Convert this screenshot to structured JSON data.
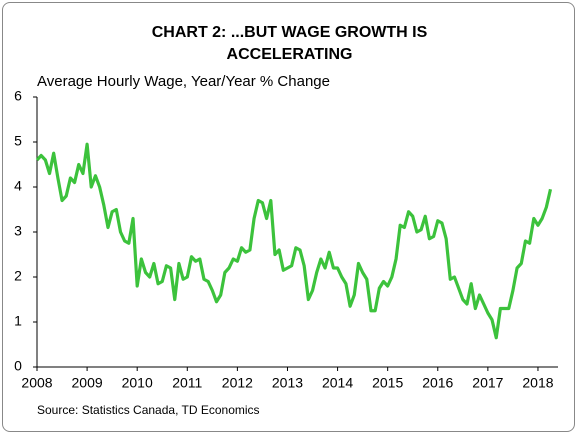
{
  "chart_data": {
    "type": "line",
    "title": "CHART 2: ...BUT WAGE GROWTH IS ACCELERATING",
    "subtitle": "Average Hourly Wage, Year/Year % Change",
    "source": "Source: Statistics Canada, TD Economics",
    "x": [
      2008,
      2008.083,
      2008.167,
      2008.25,
      2008.333,
      2008.417,
      2008.5,
      2008.583,
      2008.667,
      2008.75,
      2008.833,
      2008.917,
      2009,
      2009.083,
      2009.167,
      2009.25,
      2009.333,
      2009.417,
      2009.5,
      2009.583,
      2009.667,
      2009.75,
      2009.833,
      2009.917,
      2010,
      2010.083,
      2010.167,
      2010.25,
      2010.333,
      2010.417,
      2010.5,
      2010.583,
      2010.667,
      2010.75,
      2010.833,
      2010.917,
      2011,
      2011.083,
      2011.167,
      2011.25,
      2011.333,
      2011.417,
      2011.5,
      2011.583,
      2011.667,
      2011.75,
      2011.833,
      2011.917,
      2012,
      2012.083,
      2012.167,
      2012.25,
      2012.333,
      2012.417,
      2012.5,
      2012.583,
      2012.667,
      2012.75,
      2012.833,
      2012.917,
      2013,
      2013.083,
      2013.167,
      2013.25,
      2013.333,
      2013.417,
      2013.5,
      2013.583,
      2013.667,
      2013.75,
      2013.833,
      2013.917,
      2014,
      2014.083,
      2014.167,
      2014.25,
      2014.333,
      2014.417,
      2014.5,
      2014.583,
      2014.667,
      2014.75,
      2014.833,
      2014.917,
      2015,
      2015.083,
      2015.167,
      2015.25,
      2015.333,
      2015.417,
      2015.5,
      2015.583,
      2015.667,
      2015.75,
      2015.833,
      2015.917,
      2016,
      2016.083,
      2016.167,
      2016.25,
      2016.333,
      2016.417,
      2016.5,
      2016.583,
      2016.667,
      2016.75,
      2016.833,
      2016.917,
      2017,
      2017.083,
      2017.167,
      2017.25,
      2017.333,
      2017.417,
      2017.5,
      2017.583,
      2017.667,
      2017.75,
      2017.833,
      2017.917,
      2018,
      2018.083,
      2018.167,
      2018.25
    ],
    "series": [
      {
        "color": "#3cc23c",
        "values": [
          4.6,
          4.7,
          4.6,
          4.3,
          4.75,
          4.2,
          3.7,
          3.8,
          4.2,
          4.1,
          4.5,
          4.3,
          4.95,
          4.0,
          4.25,
          4.0,
          3.6,
          3.1,
          3.45,
          3.5,
          3.0,
          2.8,
          2.75,
          3.3,
          1.8,
          2.4,
          2.1,
          2.0,
          2.3,
          1.85,
          1.9,
          2.25,
          2.2,
          1.5,
          2.3,
          1.95,
          2.0,
          2.45,
          2.35,
          2.4,
          1.95,
          1.9,
          1.7,
          1.45,
          1.6,
          2.1,
          2.2,
          2.4,
          2.35,
          2.65,
          2.55,
          2.6,
          3.3,
          3.7,
          3.65,
          3.3,
          3.7,
          2.5,
          2.6,
          2.15,
          2.2,
          2.25,
          2.65,
          2.6,
          2.25,
          1.5,
          1.7,
          2.1,
          2.4,
          2.2,
          2.55,
          2.2,
          2.2,
          2.0,
          1.85,
          1.35,
          1.6,
          2.3,
          2.1,
          1.95,
          1.25,
          1.25,
          1.75,
          1.9,
          1.8,
          2.0,
          2.4,
          3.15,
          3.1,
          3.45,
          3.35,
          3.0,
          3.05,
          3.35,
          2.85,
          2.9,
          3.25,
          3.2,
          2.85,
          1.95,
          2.0,
          1.75,
          1.5,
          1.4,
          1.85,
          1.3,
          1.6,
          1.4,
          1.2,
          1.05,
          0.65,
          1.3,
          1.3,
          1.3,
          1.7,
          2.2,
          2.3,
          2.8,
          2.75,
          3.3,
          3.15,
          3.3,
          3.55,
          3.95
        ]
      }
    ],
    "xlim": [
      2008,
      2018.4
    ],
    "xticks": [
      2008,
      2009,
      2010,
      2011,
      2012,
      2013,
      2014,
      2015,
      2016,
      2017,
      2018
    ],
    "ylim": [
      0,
      6
    ],
    "yticks": [
      0,
      1,
      2,
      3,
      4,
      5,
      6
    ]
  }
}
